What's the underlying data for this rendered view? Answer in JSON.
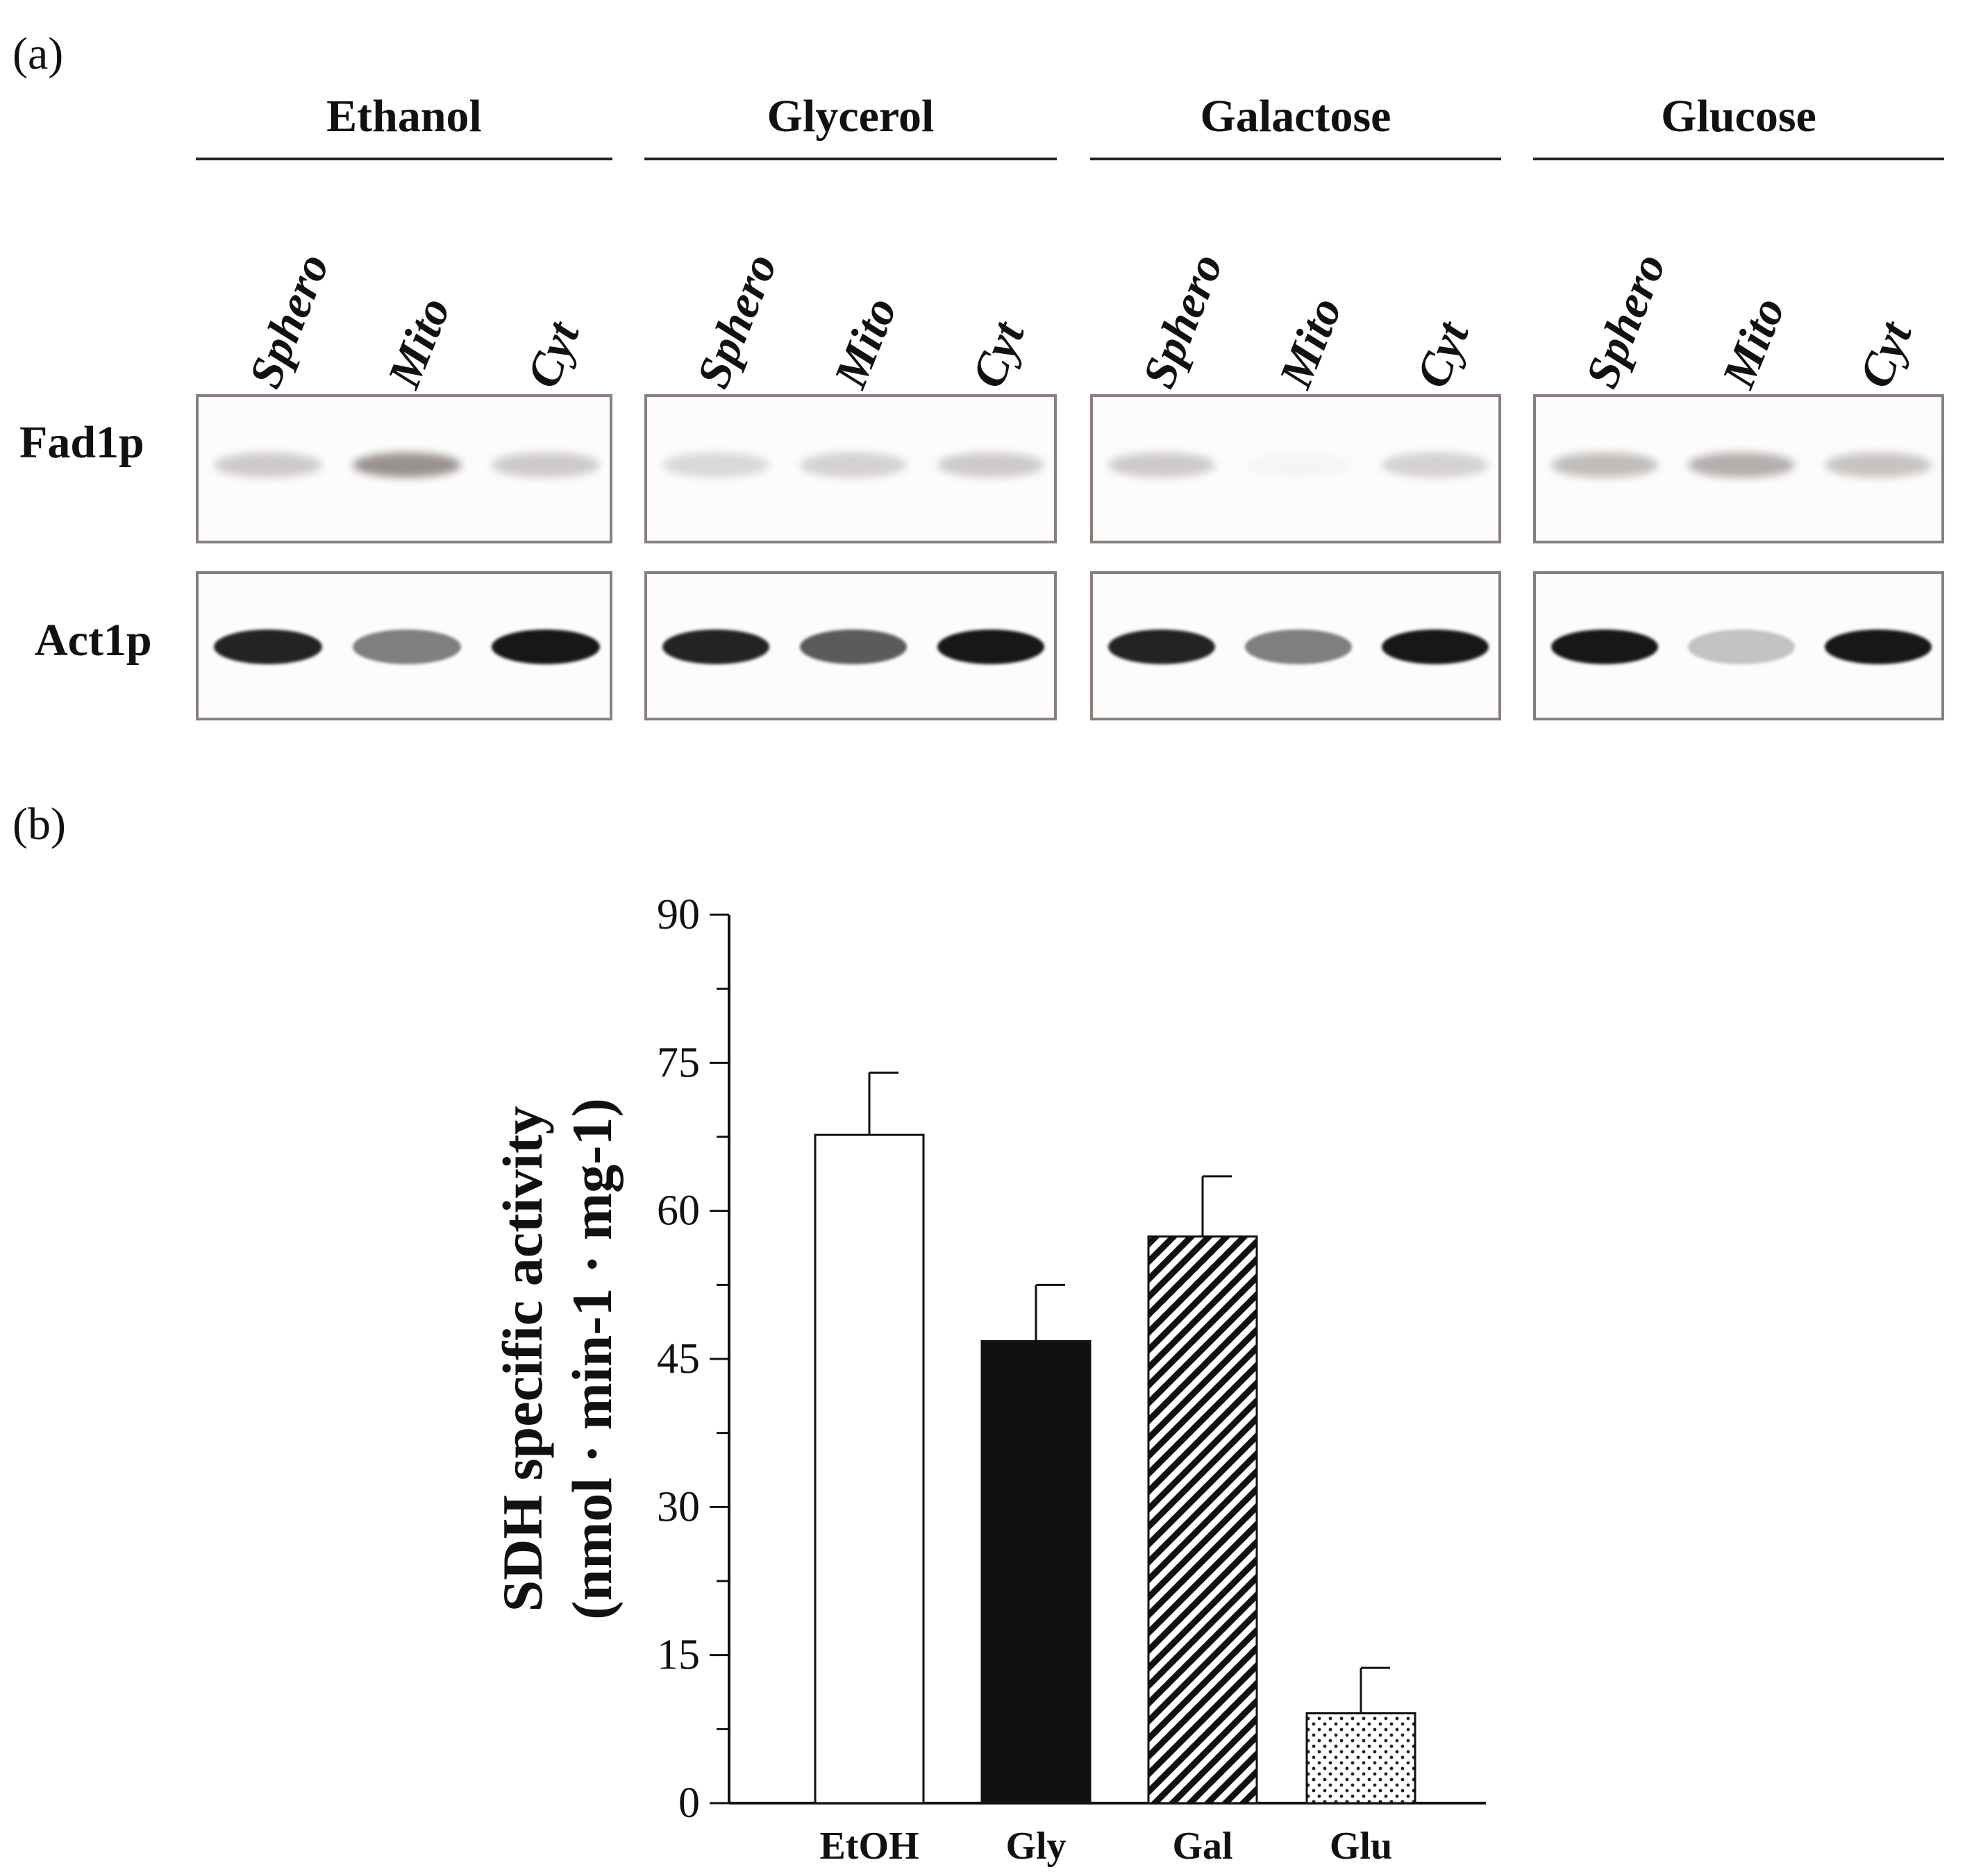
{
  "panel_a": {
    "label": "(a)",
    "groups": [
      {
        "title": "Ethanol",
        "lanes": [
          "Sphero",
          "Mito",
          "Cyt"
        ],
        "fad1p": [
          0.35,
          0.75,
          0.35
        ],
        "act1p": [
          0.95,
          0.55,
          1.0
        ]
      },
      {
        "title": "Glycerol",
        "lanes": [
          "Sphero",
          "Mito",
          "Cyt"
        ],
        "fad1p": [
          0.25,
          0.3,
          0.35
        ],
        "act1p": [
          0.95,
          0.7,
          1.0
        ]
      },
      {
        "title": "Galactose",
        "lanes": [
          "Sphero",
          "Mito",
          "Cyt"
        ],
        "fad1p": [
          0.35,
          0.05,
          0.3
        ],
        "act1p": [
          0.95,
          0.55,
          1.0
        ]
      },
      {
        "title": "Glucose",
        "lanes": [
          "Sphero",
          "Mito",
          "Cyt"
        ],
        "fad1p": [
          0.45,
          0.55,
          0.4
        ],
        "act1p": [
          1.0,
          0.25,
          1.0
        ]
      }
    ],
    "row_labels": {
      "fad1p": "Fad1p",
      "act1p": "Act1p"
    }
  },
  "panel_b": {
    "label": "(b)"
  },
  "chart_data": {
    "type": "bar",
    "categories": [
      "EtOH",
      "Gly",
      "Gal",
      "Glu"
    ],
    "values": [
      67.7,
      46.8,
      57.4,
      9.1
    ],
    "errors": [
      6.3,
      5.7,
      6.1,
      4.6
    ],
    "patterns": [
      "white",
      "black",
      "diagonal-hatch",
      "dotted"
    ],
    "ylabel_line1": "SDH specific activity",
    "ylabel_line2": "(nmol · min-1 · mg-1)",
    "ylim": [
      0,
      90
    ],
    "yticks": [
      0,
      15,
      30,
      45,
      60,
      75,
      90
    ],
    "grid": false
  }
}
